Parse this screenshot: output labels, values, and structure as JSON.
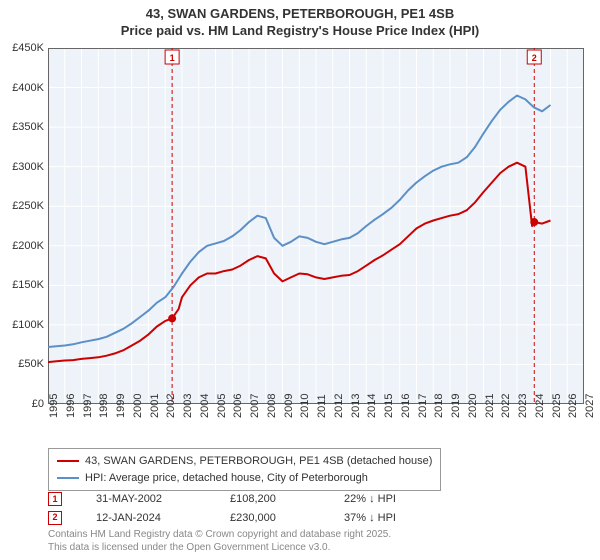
{
  "title_line1": "43, SWAN GARDENS, PETERBOROUGH, PE1 4SB",
  "title_line2": "Price paid vs. HM Land Registry's House Price Index (HPI)",
  "chart": {
    "type": "line",
    "background_color": "#ffffff",
    "plot_area_color": "#eef3f9",
    "axis_color": "#666666",
    "grid_color": "#ffffff",
    "ylim": [
      0,
      450000
    ],
    "ytick_step": 50000,
    "y_ticks": [
      "£0",
      "£50K",
      "£100K",
      "£150K",
      "£200K",
      "£250K",
      "£300K",
      "£350K",
      "£400K",
      "£450K"
    ],
    "xlim": [
      1995,
      2027
    ],
    "x_ticks": [
      1995,
      1996,
      1997,
      1998,
      1999,
      2000,
      2001,
      2002,
      2003,
      2004,
      2005,
      2006,
      2007,
      2008,
      2009,
      2010,
      2011,
      2012,
      2013,
      2014,
      2015,
      2016,
      2017,
      2018,
      2019,
      2020,
      2021,
      2022,
      2023,
      2024,
      2025,
      2026,
      2027
    ],
    "label_fontsize": 11,
    "title_fontsize": 13,
    "series": [
      {
        "name": "price_paid",
        "label": "43, SWAN GARDENS, PETERBOROUGH, PE1 4SB (detached house)",
        "color": "#cc0000",
        "line_width": 2,
        "data": [
          [
            1995,
            53000
          ],
          [
            1995.5,
            54000
          ],
          [
            1996,
            55000
          ],
          [
            1996.5,
            55500
          ],
          [
            1997,
            57000
          ],
          [
            1997.5,
            58000
          ],
          [
            1998,
            59000
          ],
          [
            1998.5,
            61000
          ],
          [
            1999,
            64000
          ],
          [
            1999.5,
            68000
          ],
          [
            2000,
            74000
          ],
          [
            2000.5,
            80000
          ],
          [
            2001,
            88000
          ],
          [
            2001.5,
            98000
          ],
          [
            2002,
            105000
          ],
          [
            2002.41,
            108200
          ],
          [
            2002.8,
            120000
          ],
          [
            2003,
            135000
          ],
          [
            2003.5,
            150000
          ],
          [
            2004,
            160000
          ],
          [
            2004.5,
            165000
          ],
          [
            2005,
            165000
          ],
          [
            2005.5,
            168000
          ],
          [
            2006,
            170000
          ],
          [
            2006.5,
            175000
          ],
          [
            2007,
            182000
          ],
          [
            2007.5,
            187000
          ],
          [
            2008,
            184000
          ],
          [
            2008.5,
            165000
          ],
          [
            2009,
            155000
          ],
          [
            2009.5,
            160000
          ],
          [
            2010,
            165000
          ],
          [
            2010.5,
            164000
          ],
          [
            2011,
            160000
          ],
          [
            2011.5,
            158000
          ],
          [
            2012,
            160000
          ],
          [
            2012.5,
            162000
          ],
          [
            2013,
            163000
          ],
          [
            2013.5,
            168000
          ],
          [
            2014,
            175000
          ],
          [
            2014.5,
            182000
          ],
          [
            2015,
            188000
          ],
          [
            2015.5,
            195000
          ],
          [
            2016,
            202000
          ],
          [
            2016.5,
            212000
          ],
          [
            2017,
            222000
          ],
          [
            2017.5,
            228000
          ],
          [
            2018,
            232000
          ],
          [
            2018.5,
            235000
          ],
          [
            2019,
            238000
          ],
          [
            2019.5,
            240000
          ],
          [
            2020,
            245000
          ],
          [
            2020.5,
            255000
          ],
          [
            2021,
            268000
          ],
          [
            2021.5,
            280000
          ],
          [
            2022,
            292000
          ],
          [
            2022.5,
            300000
          ],
          [
            2023,
            305000
          ],
          [
            2023.5,
            300000
          ],
          [
            2023.9,
            225000
          ],
          [
            2024.03,
            230000
          ],
          [
            2024.5,
            228000
          ],
          [
            2025,
            232000
          ]
        ]
      },
      {
        "name": "hpi",
        "label": "HPI: Average price, detached house, City of Peterborough",
        "color": "#5b8fc7",
        "line_width": 2,
        "data": [
          [
            1995,
            72000
          ],
          [
            1995.5,
            73000
          ],
          [
            1996,
            74000
          ],
          [
            1996.5,
            75500
          ],
          [
            1997,
            78000
          ],
          [
            1997.5,
            80000
          ],
          [
            1998,
            82000
          ],
          [
            1998.5,
            85000
          ],
          [
            1999,
            90000
          ],
          [
            1999.5,
            95000
          ],
          [
            2000,
            102000
          ],
          [
            2000.5,
            110000
          ],
          [
            2001,
            118000
          ],
          [
            2001.5,
            128000
          ],
          [
            2002,
            135000
          ],
          [
            2002.5,
            148000
          ],
          [
            2003,
            165000
          ],
          [
            2003.5,
            180000
          ],
          [
            2004,
            192000
          ],
          [
            2004.5,
            200000
          ],
          [
            2005,
            203000
          ],
          [
            2005.5,
            206000
          ],
          [
            2006,
            212000
          ],
          [
            2006.5,
            220000
          ],
          [
            2007,
            230000
          ],
          [
            2007.5,
            238000
          ],
          [
            2008,
            235000
          ],
          [
            2008.5,
            210000
          ],
          [
            2009,
            200000
          ],
          [
            2009.5,
            205000
          ],
          [
            2010,
            212000
          ],
          [
            2010.5,
            210000
          ],
          [
            2011,
            205000
          ],
          [
            2011.5,
            202000
          ],
          [
            2012,
            205000
          ],
          [
            2012.5,
            208000
          ],
          [
            2013,
            210000
          ],
          [
            2013.5,
            216000
          ],
          [
            2014,
            225000
          ],
          [
            2014.5,
            233000
          ],
          [
            2015,
            240000
          ],
          [
            2015.5,
            248000
          ],
          [
            2016,
            258000
          ],
          [
            2016.5,
            270000
          ],
          [
            2017,
            280000
          ],
          [
            2017.5,
            288000
          ],
          [
            2018,
            295000
          ],
          [
            2018.5,
            300000
          ],
          [
            2019,
            303000
          ],
          [
            2019.5,
            305000
          ],
          [
            2020,
            312000
          ],
          [
            2020.5,
            325000
          ],
          [
            2021,
            342000
          ],
          [
            2021.5,
            358000
          ],
          [
            2022,
            372000
          ],
          [
            2022.5,
            382000
          ],
          [
            2023,
            390000
          ],
          [
            2023.5,
            385000
          ],
          [
            2024,
            375000
          ],
          [
            2024.5,
            370000
          ],
          [
            2025,
            378000
          ]
        ]
      }
    ],
    "markers": [
      {
        "id": "1",
        "year": 2002.41,
        "color": "#cc0000",
        "point_y": 108200
      },
      {
        "id": "2",
        "year": 2024.03,
        "color": "#cc0000",
        "point_y": 230000
      }
    ]
  },
  "legend": {
    "items": [
      {
        "color": "#cc0000",
        "text": "43, SWAN GARDENS, PETERBOROUGH, PE1 4SB (detached house)"
      },
      {
        "color": "#5b8fc7",
        "text": "HPI: Average price, detached house, City of Peterborough"
      }
    ]
  },
  "sale_points": [
    {
      "marker_id": "1",
      "marker_color": "#cc0000",
      "date": "31-MAY-2002",
      "price": "£108,200",
      "delta": "22% ↓ HPI"
    },
    {
      "marker_id": "2",
      "marker_color": "#cc0000",
      "date": "12-JAN-2024",
      "price": "£230,000",
      "delta": "37% ↓ HPI"
    }
  ],
  "footer_line1": "Contains HM Land Registry data © Crown copyright and database right 2025.",
  "footer_line2": "This data is licensed under the Open Government Licence v3.0."
}
